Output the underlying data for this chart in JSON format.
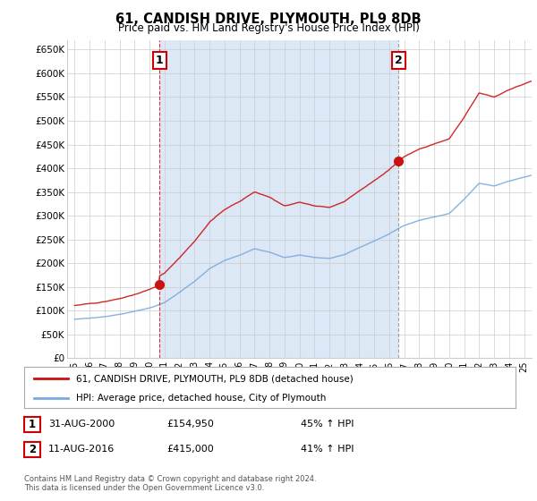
{
  "title": "61, CANDISH DRIVE, PLYMOUTH, PL9 8DB",
  "subtitle": "Price paid vs. HM Land Registry's House Price Index (HPI)",
  "ylabel_ticks": [
    "£0",
    "£50K",
    "£100K",
    "£150K",
    "£200K",
    "£250K",
    "£300K",
    "£350K",
    "£400K",
    "£450K",
    "£500K",
    "£550K",
    "£600K",
    "£650K"
  ],
  "ytick_values": [
    0,
    50000,
    100000,
    150000,
    200000,
    250000,
    300000,
    350000,
    400000,
    450000,
    500000,
    550000,
    600000,
    650000
  ],
  "purchase1_date": 2000.667,
  "purchase1_price": 154950,
  "purchase2_date": 2016.611,
  "purchase2_price": 415000,
  "vline1_color": "#dd0000",
  "vline2_color": "#888888",
  "hpi_color": "#7aaadd",
  "price_color": "#cc1111",
  "shade_color": "#dce8f5",
  "background_color": "#ffffff",
  "grid_color": "#cccccc",
  "legend_entry1": "61, CANDISH DRIVE, PLYMOUTH, PL9 8DB (detached house)",
  "legend_entry2": "HPI: Average price, detached house, City of Plymouth",
  "annotation1_label": "1",
  "annotation2_label": "2",
  "table_row1": [
    "1",
    "31-AUG-2000",
    "£154,950",
    "45% ↑ HPI"
  ],
  "table_row2": [
    "2",
    "11-AUG-2016",
    "£415,000",
    "41% ↑ HPI"
  ],
  "footnote": "Contains HM Land Registry data © Crown copyright and database right 2024.\nThis data is licensed under the Open Government Licence v3.0.",
  "xlim": [
    1994.5,
    2025.5
  ],
  "ylim": [
    0,
    670000
  ],
  "xtick_years": [
    1995,
    1996,
    1997,
    1998,
    1999,
    2000,
    2001,
    2002,
    2003,
    2004,
    2005,
    2006,
    2007,
    2008,
    2009,
    2010,
    2011,
    2012,
    2013,
    2014,
    2015,
    2016,
    2017,
    2018,
    2019,
    2020,
    2021,
    2022,
    2023,
    2024,
    2025
  ]
}
